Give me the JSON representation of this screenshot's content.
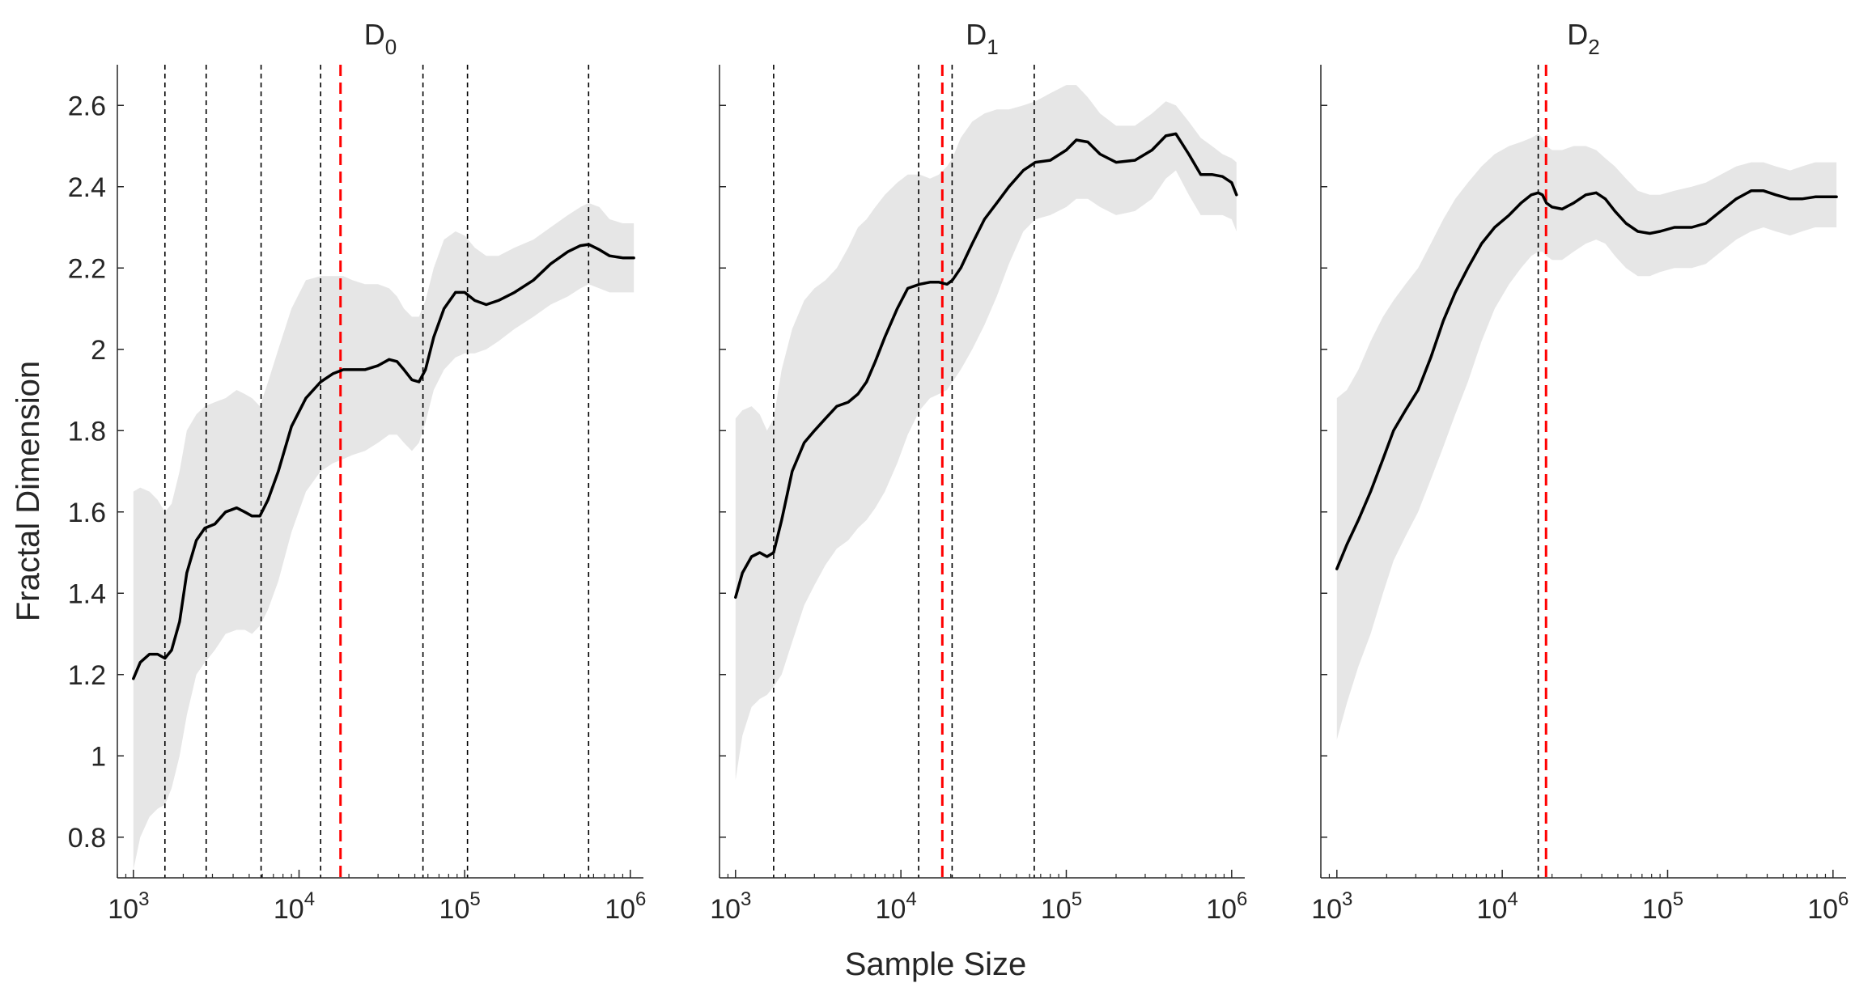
{
  "figure": {
    "xlabel": "Sample Size",
    "ylabel": "Fractal Dimension"
  },
  "chart_data": [
    {
      "type": "line",
      "title": "D",
      "title_sub": "0",
      "xscale": "log",
      "xlim": [
        800,
        1200000
      ],
      "ylim": [
        0.7,
        2.7
      ],
      "yticks": [
        0.8,
        1,
        1.2,
        1.4,
        1.6,
        1.8,
        2,
        2.2,
        2.4,
        2.6
      ],
      "ytick_labels": [
        "0.8",
        "1",
        "1.2",
        "1.4",
        "1.6",
        "1.8",
        "2",
        "2.2",
        "2.4",
        "2.6"
      ],
      "xticks": [
        1000,
        10000,
        100000,
        1000000
      ],
      "xtick_bases": [
        "10",
        "10",
        "10",
        "10"
      ],
      "xtick_exps": [
        "3",
        "4",
        "5",
        "6"
      ],
      "show_ytick_labels": true,
      "series_x": [
        1000,
        1100,
        1250,
        1400,
        1550,
        1700,
        1900,
        2100,
        2400,
        2700,
        3100,
        3600,
        4200,
        4700,
        5200,
        5800,
        6500,
        7500,
        9000,
        11000,
        13500,
        16000,
        18500,
        21000,
        25000,
        30000,
        35000,
        39000,
        43000,
        48000,
        53000,
        58000,
        65000,
        75000,
        88000,
        100000,
        115000,
        135000,
        160000,
        200000,
        260000,
        330000,
        420000,
        500000,
        560000,
        650000,
        750000,
        900000,
        1050000
      ],
      "series_y": [
        1.19,
        1.23,
        1.25,
        1.25,
        1.24,
        1.26,
        1.33,
        1.45,
        1.53,
        1.56,
        1.57,
        1.6,
        1.61,
        1.6,
        1.59,
        1.59,
        1.63,
        1.7,
        1.81,
        1.88,
        1.92,
        1.94,
        1.95,
        1.95,
        1.95,
        1.96,
        1.975,
        1.97,
        1.95,
        1.925,
        1.92,
        1.95,
        2.03,
        2.1,
        2.14,
        2.14,
        2.12,
        2.11,
        2.12,
        2.14,
        2.17,
        2.21,
        2.24,
        2.255,
        2.258,
        2.245,
        2.23,
        2.225,
        2.225
      ],
      "band_upper": [
        1.65,
        1.66,
        1.65,
        1.63,
        1.6,
        1.62,
        1.7,
        1.8,
        1.84,
        1.86,
        1.87,
        1.88,
        1.9,
        1.89,
        1.88,
        1.86,
        1.92,
        2.0,
        2.1,
        2.17,
        2.18,
        2.18,
        2.18,
        2.17,
        2.16,
        2.16,
        2.15,
        2.13,
        2.1,
        2.08,
        2.08,
        2.12,
        2.2,
        2.27,
        2.29,
        2.28,
        2.25,
        2.23,
        2.23,
        2.25,
        2.27,
        2.3,
        2.33,
        2.35,
        2.36,
        2.35,
        2.32,
        2.31,
        2.31
      ],
      "band_lower": [
        0.72,
        0.8,
        0.85,
        0.87,
        0.88,
        0.92,
        1.0,
        1.1,
        1.2,
        1.23,
        1.26,
        1.3,
        1.31,
        1.31,
        1.3,
        1.32,
        1.36,
        1.43,
        1.55,
        1.65,
        1.7,
        1.72,
        1.73,
        1.74,
        1.75,
        1.77,
        1.79,
        1.79,
        1.77,
        1.75,
        1.77,
        1.82,
        1.9,
        1.95,
        1.98,
        1.99,
        1.99,
        2.0,
        2.02,
        2.05,
        2.08,
        2.11,
        2.13,
        2.15,
        2.16,
        2.15,
        2.14,
        2.14,
        2.14
      ],
      "black_vlines": [
        1550,
        2750,
        5900,
        13500,
        56000,
        104000,
        560000
      ],
      "red_vline": 17800
    },
    {
      "type": "line",
      "title": "D",
      "title_sub": "1",
      "xscale": "log",
      "xlim": [
        800,
        1200000
      ],
      "ylim": [
        0.7,
        2.7
      ],
      "yticks": [
        0.8,
        1,
        1.2,
        1.4,
        1.6,
        1.8,
        2,
        2.2,
        2.4,
        2.6
      ],
      "ytick_labels": [],
      "xticks": [
        1000,
        10000,
        100000,
        1000000
      ],
      "xtick_bases": [
        "10",
        "10",
        "10",
        "10"
      ],
      "xtick_exps": [
        "3",
        "4",
        "5",
        "6"
      ],
      "show_ytick_labels": false,
      "series_x": [
        1000,
        1100,
        1250,
        1400,
        1550,
        1700,
        1900,
        2200,
        2600,
        3000,
        3500,
        4100,
        4800,
        5500,
        6200,
        7000,
        8000,
        9500,
        11000,
        13000,
        15000,
        17000,
        19000,
        20500,
        23000,
        27000,
        32000,
        38000,
        45000,
        55000,
        65000,
        80000,
        100000,
        115000,
        135000,
        160000,
        200000,
        260000,
        330000,
        400000,
        460000,
        550000,
        650000,
        760000,
        880000,
        1000000,
        1070000
      ],
      "series_y": [
        1.39,
        1.45,
        1.49,
        1.5,
        1.49,
        1.5,
        1.58,
        1.7,
        1.77,
        1.8,
        1.83,
        1.86,
        1.87,
        1.89,
        1.92,
        1.97,
        2.03,
        2.1,
        2.15,
        2.16,
        2.165,
        2.165,
        2.16,
        2.17,
        2.2,
        2.26,
        2.32,
        2.36,
        2.4,
        2.44,
        2.46,
        2.465,
        2.49,
        2.515,
        2.51,
        2.48,
        2.46,
        2.465,
        2.49,
        2.525,
        2.53,
        2.48,
        2.43,
        2.43,
        2.425,
        2.41,
        2.38
      ],
      "band_upper": [
        1.83,
        1.85,
        1.86,
        1.84,
        1.8,
        1.83,
        1.95,
        2.05,
        2.12,
        2.15,
        2.17,
        2.2,
        2.25,
        2.3,
        2.32,
        2.35,
        2.38,
        2.41,
        2.43,
        2.43,
        2.42,
        2.43,
        2.45,
        2.47,
        2.52,
        2.56,
        2.58,
        2.59,
        2.59,
        2.6,
        2.61,
        2.63,
        2.65,
        2.65,
        2.62,
        2.58,
        2.55,
        2.55,
        2.58,
        2.61,
        2.6,
        2.56,
        2.52,
        2.5,
        2.48,
        2.47,
        2.46
      ],
      "band_lower": [
        0.94,
        1.05,
        1.12,
        1.14,
        1.15,
        1.17,
        1.2,
        1.28,
        1.37,
        1.42,
        1.47,
        1.51,
        1.53,
        1.56,
        1.58,
        1.61,
        1.65,
        1.72,
        1.79,
        1.85,
        1.88,
        1.89,
        1.9,
        1.92,
        1.95,
        2.0,
        2.06,
        2.13,
        2.21,
        2.29,
        2.32,
        2.33,
        2.35,
        2.37,
        2.37,
        2.35,
        2.33,
        2.34,
        2.37,
        2.42,
        2.44,
        2.38,
        2.33,
        2.33,
        2.33,
        2.32,
        2.29
      ],
      "black_vlines": [
        1700,
        12800,
        20400,
        64000
      ],
      "red_vline": 17800
    },
    {
      "type": "line",
      "title": "D",
      "title_sub": "2",
      "xscale": "log",
      "xlim": [
        800,
        1200000
      ],
      "ylim": [
        0.7,
        2.7
      ],
      "yticks": [
        0.8,
        1,
        1.2,
        1.4,
        1.6,
        1.8,
        2,
        2.2,
        2.4,
        2.6
      ],
      "ytick_labels": [],
      "xticks": [
        1000,
        10000,
        100000,
        1000000
      ],
      "xtick_bases": [
        "10",
        "10",
        "10",
        "10"
      ],
      "xtick_exps": [
        "3",
        "4",
        "5",
        "6"
      ],
      "show_ytick_labels": false,
      "series_x": [
        1000,
        1150,
        1350,
        1600,
        1900,
        2200,
        2600,
        3100,
        3700,
        4400,
        5200,
        6200,
        7500,
        9000,
        11000,
        13000,
        15000,
        16500,
        17500,
        18500,
        20000,
        23000,
        27000,
        32000,
        37000,
        42000,
        48000,
        56000,
        66000,
        78000,
        90000,
        110000,
        140000,
        170000,
        210000,
        260000,
        320000,
        380000,
        450000,
        550000,
        650000,
        780000,
        920000,
        1050000
      ],
      "series_y": [
        1.46,
        1.52,
        1.58,
        1.65,
        1.73,
        1.8,
        1.85,
        1.9,
        1.98,
        2.07,
        2.14,
        2.2,
        2.26,
        2.3,
        2.33,
        2.36,
        2.38,
        2.385,
        2.38,
        2.36,
        2.35,
        2.345,
        2.36,
        2.38,
        2.385,
        2.37,
        2.34,
        2.31,
        2.29,
        2.285,
        2.29,
        2.3,
        2.3,
        2.31,
        2.34,
        2.37,
        2.39,
        2.39,
        2.38,
        2.37,
        2.37,
        2.375,
        2.375,
        2.375
      ],
      "band_upper": [
        1.88,
        1.9,
        1.95,
        2.02,
        2.08,
        2.12,
        2.16,
        2.2,
        2.26,
        2.32,
        2.37,
        2.41,
        2.45,
        2.48,
        2.5,
        2.51,
        2.52,
        2.53,
        2.52,
        2.5,
        2.49,
        2.49,
        2.5,
        2.5,
        2.49,
        2.47,
        2.45,
        2.42,
        2.39,
        2.38,
        2.38,
        2.39,
        2.4,
        2.41,
        2.43,
        2.45,
        2.46,
        2.46,
        2.45,
        2.44,
        2.45,
        2.46,
        2.46,
        2.46
      ],
      "band_lower": [
        1.04,
        1.13,
        1.22,
        1.3,
        1.4,
        1.48,
        1.54,
        1.6,
        1.68,
        1.76,
        1.84,
        1.92,
        2.02,
        2.1,
        2.16,
        2.2,
        2.23,
        2.24,
        2.24,
        2.23,
        2.22,
        2.22,
        2.24,
        2.26,
        2.27,
        2.26,
        2.23,
        2.2,
        2.18,
        2.18,
        2.19,
        2.2,
        2.2,
        2.21,
        2.24,
        2.27,
        2.29,
        2.3,
        2.29,
        2.28,
        2.29,
        2.3,
        2.3,
        2.3
      ],
      "black_vlines": [
        16500
      ],
      "red_vline": 18400
    }
  ]
}
